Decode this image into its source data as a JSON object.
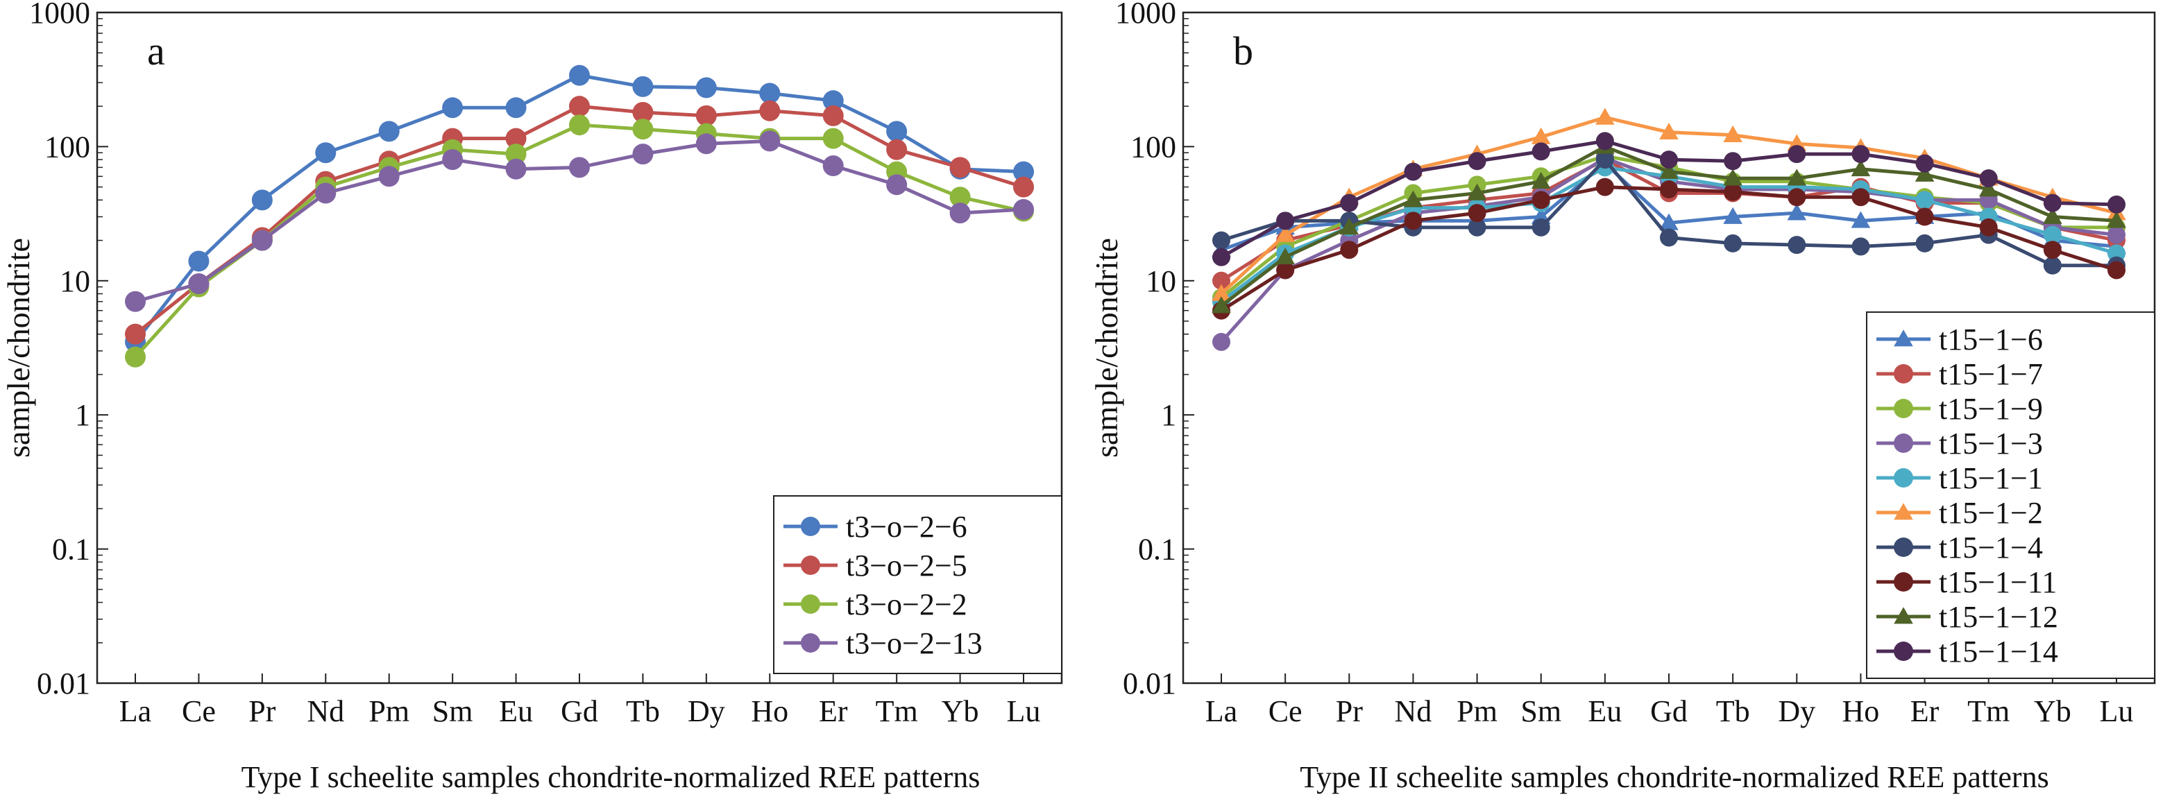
{
  "chart_data": [
    {
      "type": "line",
      "panel_label": "a",
      "caption": "Type I scheelite samples chondrite-normalized REE patterns",
      "ylabel": "sample/chondrite",
      "xlabel": "",
      "yscale": "log",
      "ylim": [
        0.01,
        1000
      ],
      "yticks": [
        "0.01",
        "0.1",
        "1",
        "10",
        "100",
        "1000"
      ],
      "categories": [
        "La",
        "Ce",
        "Pr",
        "Nd",
        "Pm",
        "Sm",
        "Eu",
        "Gd",
        "Tb",
        "Dy",
        "Ho",
        "Er",
        "Tm",
        "Yb",
        "Lu"
      ],
      "legend_position": "bottom-right",
      "grid": false,
      "series": [
        {
          "name": "t3−o−2−6",
          "color": "#4a7ac0",
          "marker": "circle",
          "values": [
            3.5,
            14,
            40,
            90,
            130,
            195,
            195,
            340,
            280,
            275,
            250,
            220,
            130,
            68,
            65
          ]
        },
        {
          "name": "t3−o−2−5",
          "color": "#c0504d",
          "marker": "circle",
          "values": [
            4,
            9.5,
            21,
            55,
            78,
            115,
            115,
            200,
            180,
            170,
            185,
            170,
            95,
            70,
            50
          ]
        },
        {
          "name": "t3−o−2−2",
          "color": "#8db63c",
          "marker": "circle",
          "values": [
            2.7,
            9,
            20,
            50,
            70,
            95,
            88,
            145,
            135,
            125,
            115,
            115,
            65,
            42,
            33
          ]
        },
        {
          "name": "t3−o−2−13",
          "color": "#8064a2",
          "marker": "circle",
          "values": [
            7,
            9.5,
            20,
            45,
            60,
            80,
            68,
            70,
            88,
            105,
            110,
            72,
            52,
            32,
            34
          ]
        }
      ]
    },
    {
      "type": "line",
      "panel_label": "b",
      "caption": "Type II scheelite samples chondrite-normalized REE patterns",
      "ylabel": "sample/chondrite",
      "xlabel": "",
      "yscale": "log",
      "ylim": [
        0.01,
        1000
      ],
      "yticks": [
        "0.01",
        "0.1",
        "1",
        "10",
        "100",
        "1000"
      ],
      "categories": [
        "La",
        "Ce",
        "Pr",
        "Nd",
        "Pm",
        "Sm",
        "Eu",
        "Gd",
        "Tb",
        "Dy",
        "Ho",
        "Er",
        "Tm",
        "Yb",
        "Lu"
      ],
      "legend_position": "bottom-right",
      "grid": false,
      "series": [
        {
          "name": "t15−1−6",
          "color": "#4a7ac0",
          "marker": "triangle",
          "values": [
            17,
            25,
            27,
            28,
            28,
            30,
            75,
            27,
            30,
            32,
            28,
            30,
            32,
            20,
            18
          ]
        },
        {
          "name": "t15−1−7",
          "color": "#c0504d",
          "marker": "circle",
          "values": [
            10,
            20,
            26,
            35,
            40,
            45,
            80,
            45,
            45,
            42,
            50,
            38,
            38,
            25,
            20
          ]
        },
        {
          "name": "t15−1−9",
          "color": "#8db63c",
          "marker": "circle",
          "values": [
            7.5,
            18,
            28,
            45,
            52,
            60,
            85,
            70,
            55,
            55,
            48,
            42,
            38,
            25,
            25
          ]
        },
        {
          "name": "t15−1−3",
          "color": "#8064a2",
          "marker": "circle",
          "values": [
            3.5,
            12,
            20,
            32,
            36,
            42,
            82,
            55,
            48,
            48,
            46,
            40,
            40,
            25,
            22
          ]
        },
        {
          "name": "t15−1−1",
          "color": "#4bacc6",
          "marker": "circle",
          "values": [
            7,
            16,
            25,
            35,
            35,
            38,
            70,
            60,
            50,
            50,
            48,
            40,
            30,
            22,
            16
          ]
        },
        {
          "name": "t15−1−2",
          "color": "#f79646",
          "marker": "triangle",
          "values": [
            8,
            22,
            42,
            68,
            88,
            118,
            165,
            128,
            122,
            105,
            98,
            82,
            58,
            42,
            32
          ]
        },
        {
          "name": "t15−1−4",
          "color": "#3a4a70",
          "marker": "circle",
          "values": [
            20,
            28,
            28,
            25,
            25,
            25,
            80,
            21,
            19,
            18.5,
            18,
            19,
            22,
            13,
            13
          ]
        },
        {
          "name": "t15−1−11",
          "color": "#6b2020",
          "marker": "circle",
          "values": [
            6,
            12,
            17,
            28,
            32,
            40,
            50,
            48,
            46,
            42,
            42,
            30,
            25,
            17,
            12
          ]
        },
        {
          "name": "t15−1−12",
          "color": "#4f6228",
          "marker": "triangle",
          "values": [
            6.5,
            15,
            25,
            40,
            45,
            55,
            100,
            65,
            58,
            58,
            68,
            62,
            48,
            30,
            28
          ]
        },
        {
          "name": "t15−1−14",
          "color": "#4b2a55",
          "marker": "circle",
          "values": [
            15,
            28,
            38,
            65,
            78,
            92,
            110,
            80,
            78,
            88,
            88,
            75,
            58,
            38,
            37
          ]
        }
      ]
    }
  ]
}
